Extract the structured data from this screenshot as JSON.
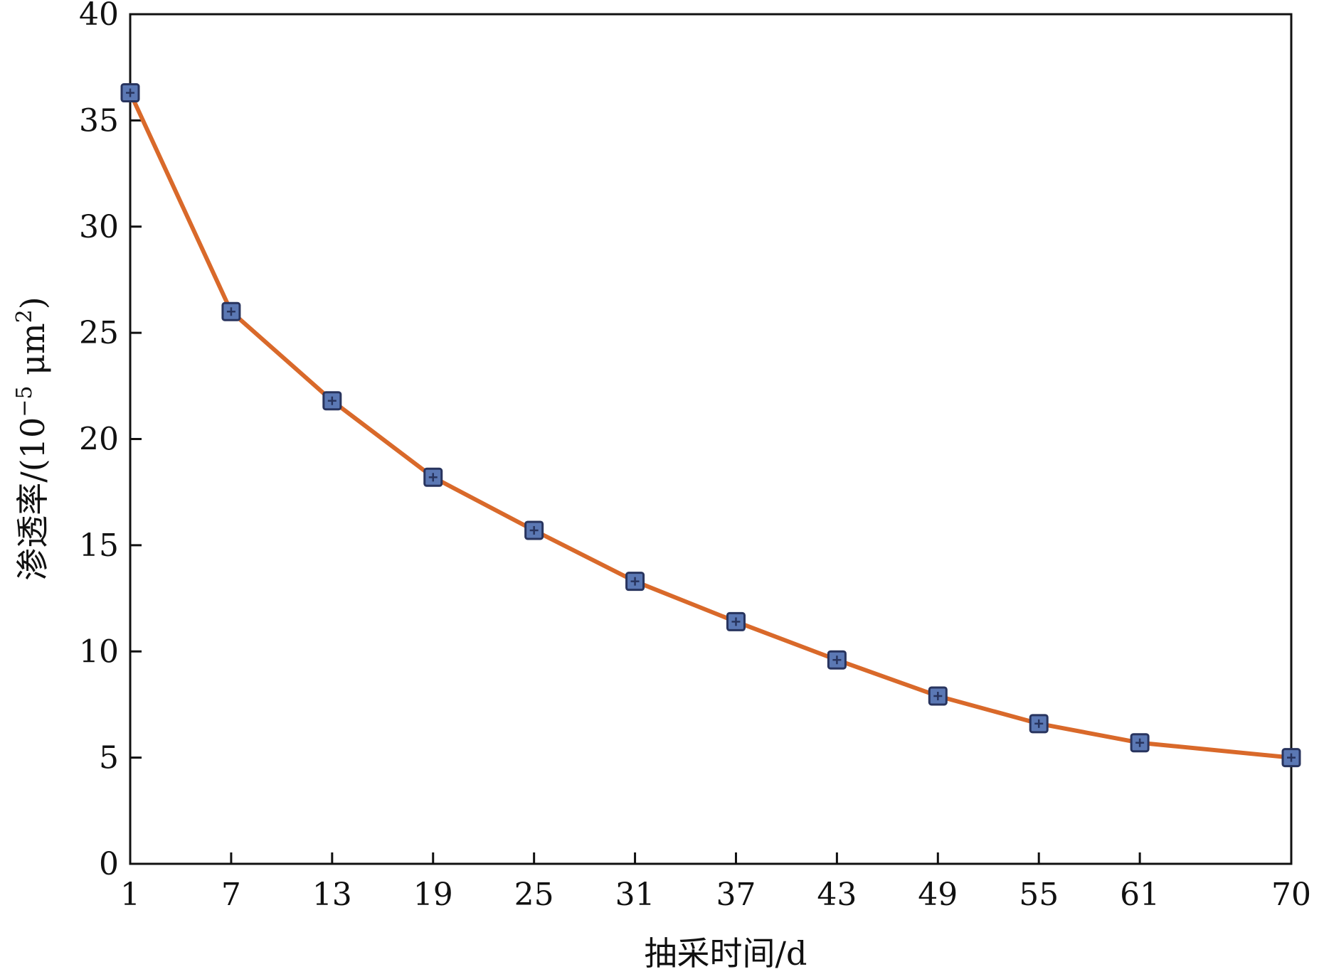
{
  "chart_data": {
    "type": "line",
    "title": "",
    "xlabel": "抽采时间/d",
    "ylabel_main": "渗透率/(10",
    "ylabel_exp1": "−5",
    "ylabel_mid": " μm",
    "ylabel_exp2": "2",
    "ylabel_end": ")",
    "x_categories": [
      "1",
      "7",
      "13",
      "19",
      "25",
      "31",
      "37",
      "43",
      "49",
      "55",
      "61",
      "70"
    ],
    "y_ticks": [
      0,
      5,
      10,
      15,
      20,
      25,
      30,
      35,
      40
    ],
    "ylim": [
      0,
      40
    ],
    "grid": false,
    "legend": "none",
    "series": [
      {
        "values": [
          36.3,
          26.0,
          21.8,
          18.2,
          15.7,
          13.3,
          11.4,
          9.6,
          7.9,
          6.6,
          5.7,
          5.0
        ],
        "line_color": "#d9692a",
        "marker_fill": "#5b78b4",
        "marker_edge": "#28345e",
        "marker": "square-plus"
      }
    ]
  }
}
